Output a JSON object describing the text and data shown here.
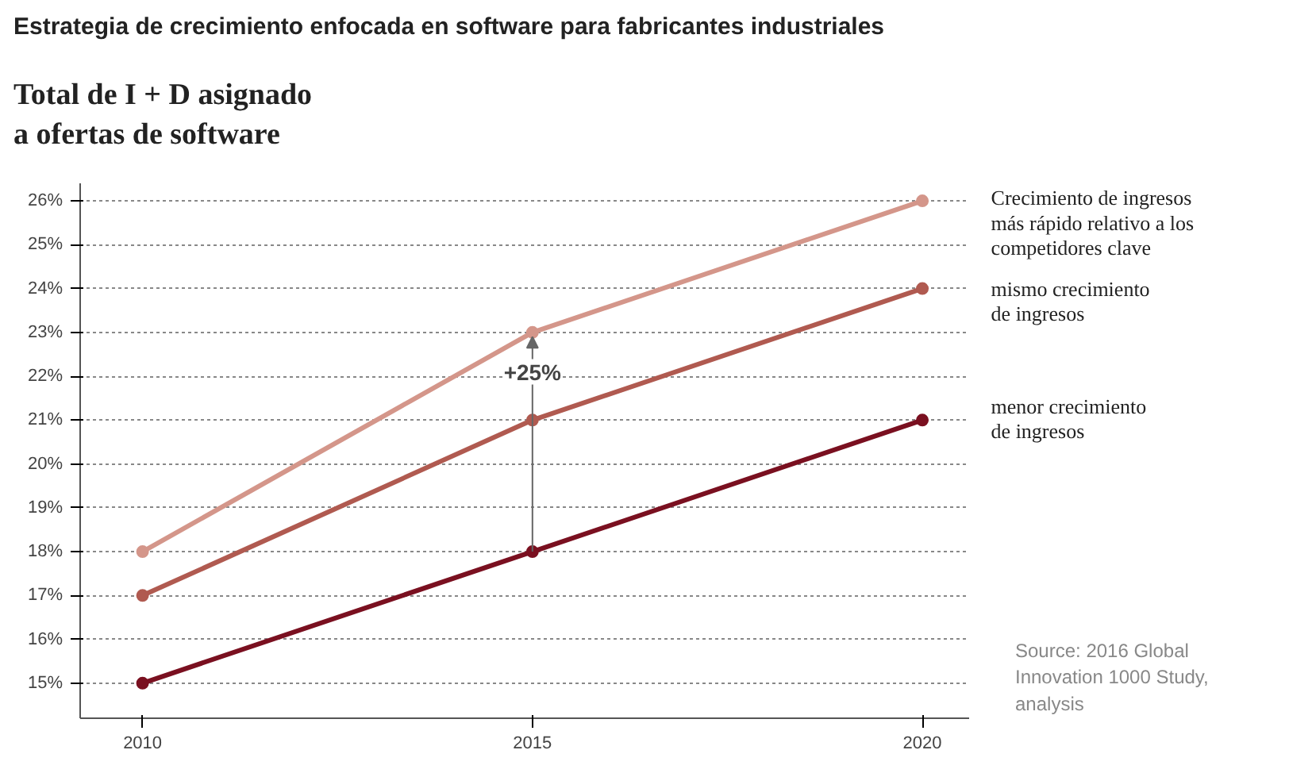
{
  "chart_data": {
    "type": "line",
    "title": "Estrategia de crecimiento enfocada en software para fabricantes industriales",
    "subtitle": "Total de I + D asignado\na ofertas de software",
    "x": [
      2010,
      2015,
      2020
    ],
    "series": [
      {
        "name": "Crecimiento de ingresos\nmás rápido relativo a los\ncompetidores clave",
        "color": "#d4968a",
        "values": [
          18,
          23,
          26
        ]
      },
      {
        "name": "mismo crecimiento\nde ingresos",
        "color": "#b05a50",
        "values": [
          17,
          21,
          24
        ]
      },
      {
        "name": "menor crecimiento\nde ingresos",
        "color": "#7a1020",
        "values": [
          15,
          18,
          21
        ]
      }
    ],
    "xlim": [
      2009.2,
      2020.6
    ],
    "xticks": [
      2010,
      2015,
      2020
    ],
    "ylim": [
      14.2,
      26.4
    ],
    "yticks": [
      {
        "value": 15,
        "label": "15%"
      },
      {
        "value": 16,
        "label": "16%"
      },
      {
        "value": 17,
        "label": "17%"
      },
      {
        "value": 18,
        "label": "18%"
      },
      {
        "value": 19,
        "label": "19%"
      },
      {
        "value": 20,
        "label": "20%"
      },
      {
        "value": 21,
        "label": "21%"
      },
      {
        "value": 22,
        "label": "22%"
      },
      {
        "value": 23,
        "label": "23%"
      },
      {
        "value": 24,
        "label": "24%"
      },
      {
        "value": 25,
        "label": "25%"
      },
      {
        "value": 26,
        "label": "26%"
      }
    ],
    "grid": "y",
    "marker": "circle",
    "line_style": "solid",
    "legend": false,
    "annotations": [
      {
        "text": "+25%",
        "x": 2015,
        "y": 22.1
      },
      "Source: 2016 Global\nInnovation 1000 Study,\nanalysis"
    ]
  }
}
